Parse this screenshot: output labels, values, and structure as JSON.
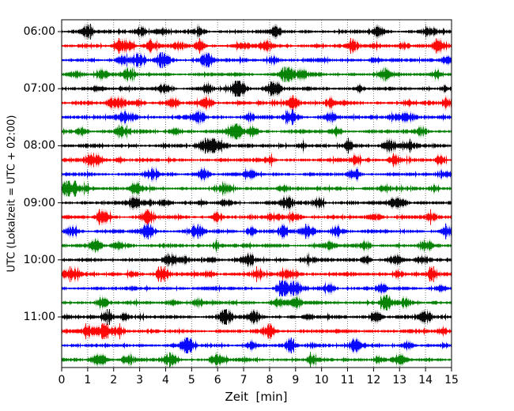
{
  "figure": {
    "background": "#ffffff"
  },
  "chart_data": {
    "type": "line",
    "subtype": "seismogram-helicorder",
    "title": "",
    "xlabel": "Zeit  [min]",
    "ylabel": "UTC (Lokalzeit = UTC + 02:00)",
    "xlim": [
      0,
      15
    ],
    "minutes_per_line": 15,
    "grid": {
      "vertical": true,
      "horizontal": false,
      "style": "dotted",
      "color": "#777777"
    },
    "x_tick_labels": [
      "0",
      "1",
      "2",
      "3",
      "4",
      "5",
      "6",
      "7",
      "8",
      "9",
      "10",
      "11",
      "12",
      "13",
      "14",
      "15"
    ],
    "y_tick_labels": [
      "06:00",
      "07:00",
      "08:00",
      "09:00",
      "10:00",
      "11:00"
    ],
    "y_tick_trace_indices": [
      0,
      4,
      8,
      12,
      16,
      20
    ],
    "trace_color_cycle": [
      "#000000",
      "#ff0000",
      "#0000ff",
      "#008000"
    ],
    "axis_color": "#000000",
    "traces": [
      {
        "start": "06:00",
        "color": "#000000",
        "events": [
          [
            1.0,
            1.2
          ],
          [
            3.0,
            1.5
          ],
          [
            3.9,
            0.9
          ],
          [
            5.3,
            0.6
          ],
          [
            8.3,
            0.8
          ],
          [
            12.2,
            0.9
          ],
          [
            14.2,
            1.0
          ]
        ]
      },
      {
        "start": "06:15",
        "color": "#ff0000",
        "events": [
          [
            2.4,
            1.8
          ],
          [
            3.4,
            1.3
          ],
          [
            4.5,
            0.8
          ],
          [
            5.3,
            0.9
          ],
          [
            7.0,
            0.8
          ],
          [
            7.8,
            1.0
          ],
          [
            11.2,
            0.9
          ],
          [
            12.1,
            0.8
          ],
          [
            13.2,
            0.9
          ],
          [
            14.6,
            1.2
          ]
        ]
      },
      {
        "start": "06:30",
        "color": "#0000ff",
        "events": [
          [
            2.3,
            1.0
          ],
          [
            2.9,
            1.3
          ],
          [
            3.9,
            1.4
          ],
          [
            5.6,
            1.6
          ],
          [
            8.1,
            0.9
          ],
          [
            12.0,
            0.7
          ],
          [
            14.9,
            1.3
          ]
        ]
      },
      {
        "start": "06:45",
        "color": "#008000",
        "events": [
          [
            0.5,
            1.1
          ],
          [
            1.6,
            1.3
          ],
          [
            2.5,
            1.0
          ],
          [
            8.7,
            1.7
          ],
          [
            9.3,
            0.9
          ],
          [
            12.4,
            1.0
          ],
          [
            14.5,
            1.1
          ]
        ]
      },
      {
        "start": "07:00",
        "color": "#000000",
        "events": [
          [
            1.4,
            1.0
          ],
          [
            4.0,
            1.2
          ],
          [
            5.6,
            0.8
          ],
          [
            6.8,
            1.6
          ],
          [
            8.1,
            1.9
          ],
          [
            11.5,
            0.7
          ],
          [
            14.8,
            0.9
          ]
        ]
      },
      {
        "start": "07:15",
        "color": "#ff0000",
        "events": [
          [
            2.1,
            1.7
          ],
          [
            2.9,
            1.1
          ],
          [
            4.3,
            0.9
          ],
          [
            5.6,
            1.4
          ],
          [
            8.9,
            1.7
          ],
          [
            10.4,
            1.1
          ],
          [
            13.3,
            0.9
          ],
          [
            14.9,
            1.1
          ]
        ]
      },
      {
        "start": "07:30",
        "color": "#0000ff",
        "events": [
          [
            2.5,
            1.8
          ],
          [
            5.3,
            1.2
          ],
          [
            7.2,
            0.8
          ],
          [
            8.8,
            1.3
          ],
          [
            10.3,
            1.1
          ],
          [
            12.9,
            1.4
          ],
          [
            13.4,
            0.9
          ]
        ]
      },
      {
        "start": "07:45",
        "color": "#008000",
        "events": [
          [
            0.8,
            1.0
          ],
          [
            2.3,
            1.4
          ],
          [
            4.4,
            0.9
          ],
          [
            6.7,
            1.6
          ],
          [
            7.3,
            1.0
          ],
          [
            10.6,
            0.8
          ],
          [
            13.9,
            1.0
          ]
        ]
      },
      {
        "start": "08:00",
        "color": "#000000",
        "events": [
          [
            5.7,
            2.0
          ],
          [
            6.2,
            1.2
          ],
          [
            9.3,
            0.9
          ],
          [
            11.0,
            0.8
          ],
          [
            12.6,
            1.6
          ],
          [
            13.4,
            1.2
          ]
        ]
      },
      {
        "start": "08:15",
        "color": "#ff0000",
        "events": [
          [
            1.2,
            1.7
          ],
          [
            2.2,
            0.9
          ],
          [
            8.0,
            0.8
          ],
          [
            11.3,
            1.1
          ],
          [
            12.8,
            1.2
          ],
          [
            14.6,
            0.7
          ]
        ]
      },
      {
        "start": "08:30",
        "color": "#0000ff",
        "events": [
          [
            3.4,
            1.1
          ],
          [
            5.4,
            1.3
          ],
          [
            7.3,
            1.0
          ],
          [
            11.3,
            1.0
          ],
          [
            14.9,
            1.1
          ]
        ]
      },
      {
        "start": "08:45",
        "color": "#008000",
        "events": [
          [
            0.3,
            1.8
          ],
          [
            1.0,
            1.0
          ],
          [
            2.9,
            1.0
          ],
          [
            6.3,
            0.8
          ],
          [
            8.5,
            1.0
          ],
          [
            12.5,
            0.8
          ],
          [
            14.3,
            0.9
          ]
        ]
      },
      {
        "start": "09:00",
        "color": "#000000",
        "events": [
          [
            2.8,
            1.2
          ],
          [
            3.2,
            1.1
          ],
          [
            3.9,
            0.9
          ],
          [
            6.3,
            0.9
          ],
          [
            8.7,
            1.3
          ],
          [
            9.9,
            1.2
          ],
          [
            13.0,
            1.7
          ]
        ]
      },
      {
        "start": "09:15",
        "color": "#ff0000",
        "events": [
          [
            1.6,
            1.2
          ],
          [
            3.3,
            1.3
          ],
          [
            6.0,
            0.9
          ],
          [
            8.2,
            1.1
          ],
          [
            8.9,
            1.1
          ],
          [
            12.1,
            0.9
          ],
          [
            14.2,
            0.8
          ]
        ]
      },
      {
        "start": "09:30",
        "color": "#0000ff",
        "events": [
          [
            0.4,
            1.1
          ],
          [
            3.3,
            1.6
          ],
          [
            5.2,
            1.3
          ],
          [
            7.3,
            1.0
          ],
          [
            8.5,
            1.1
          ],
          [
            9.5,
            1.2
          ],
          [
            10.6,
            1.2
          ],
          [
            14.8,
            1.0
          ]
        ]
      },
      {
        "start": "09:45",
        "color": "#008000",
        "events": [
          [
            1.3,
            1.1
          ],
          [
            2.2,
            1.3
          ],
          [
            6.0,
            1.0
          ],
          [
            10.3,
            0.8
          ],
          [
            11.7,
            1.0
          ],
          [
            14.0,
            1.0
          ]
        ]
      },
      {
        "start": "10:00",
        "color": "#000000",
        "events": [
          [
            4.2,
            1.1
          ],
          [
            4.8,
            0.9
          ],
          [
            5.7,
            0.8
          ],
          [
            7.2,
            1.0
          ],
          [
            9.4,
            1.1
          ],
          [
            11.8,
            0.8
          ],
          [
            12.8,
            1.0
          ],
          [
            13.9,
            0.8
          ]
        ]
      },
      {
        "start": "10:15",
        "color": "#ff0000",
        "events": [
          [
            0.3,
            1.6
          ],
          [
            2.8,
            1.0
          ],
          [
            3.9,
            1.4
          ],
          [
            5.7,
            0.9
          ],
          [
            7.5,
            0.9
          ],
          [
            8.8,
            1.6
          ],
          [
            13.0,
            1.1
          ],
          [
            14.3,
            1.0
          ]
        ]
      },
      {
        "start": "10:30",
        "color": "#0000ff",
        "events": [
          [
            8.5,
            1.4
          ],
          [
            9.0,
            1.3
          ],
          [
            10.3,
            0.9
          ],
          [
            12.3,
            0.9
          ],
          [
            14.6,
            0.7
          ]
        ]
      },
      {
        "start": "10:45",
        "color": "#008000",
        "events": [
          [
            1.6,
            1.2
          ],
          [
            4.3,
            0.8
          ],
          [
            5.2,
            0.9
          ],
          [
            8.3,
            0.9
          ],
          [
            9.0,
            1.1
          ],
          [
            12.5,
            1.3
          ],
          [
            13.3,
            0.9
          ]
        ]
      },
      {
        "start": "11:00",
        "color": "#000000",
        "events": [
          [
            1.8,
            1.1
          ],
          [
            2.4,
            0.9
          ],
          [
            6.3,
            1.6
          ],
          [
            7.4,
            1.0
          ],
          [
            9.5,
            0.8
          ],
          [
            12.1,
            1.3
          ],
          [
            14.0,
            1.2
          ]
        ]
      },
      {
        "start": "11:15",
        "color": "#ff0000",
        "events": [
          [
            1.1,
            1.2
          ],
          [
            1.7,
            1.7
          ],
          [
            2.3,
            1.2
          ],
          [
            8.0,
            1.4
          ],
          [
            14.7,
            0.8
          ]
        ]
      },
      {
        "start": "11:30",
        "color": "#0000ff",
        "events": [
          [
            4.8,
            1.4
          ],
          [
            7.3,
            0.8
          ],
          [
            8.8,
            0.9
          ],
          [
            9.7,
            1.0
          ],
          [
            11.3,
            1.4
          ],
          [
            13.3,
            0.8
          ]
        ]
      },
      {
        "start": "11:45",
        "color": "#008000",
        "events": [
          [
            1.5,
            1.4
          ],
          [
            2.5,
            1.2
          ],
          [
            4.2,
            1.3
          ],
          [
            6.0,
            1.2
          ],
          [
            9.6,
            0.9
          ],
          [
            12.2,
            1.0
          ],
          [
            13.0,
            0.8
          ]
        ]
      }
    ]
  }
}
